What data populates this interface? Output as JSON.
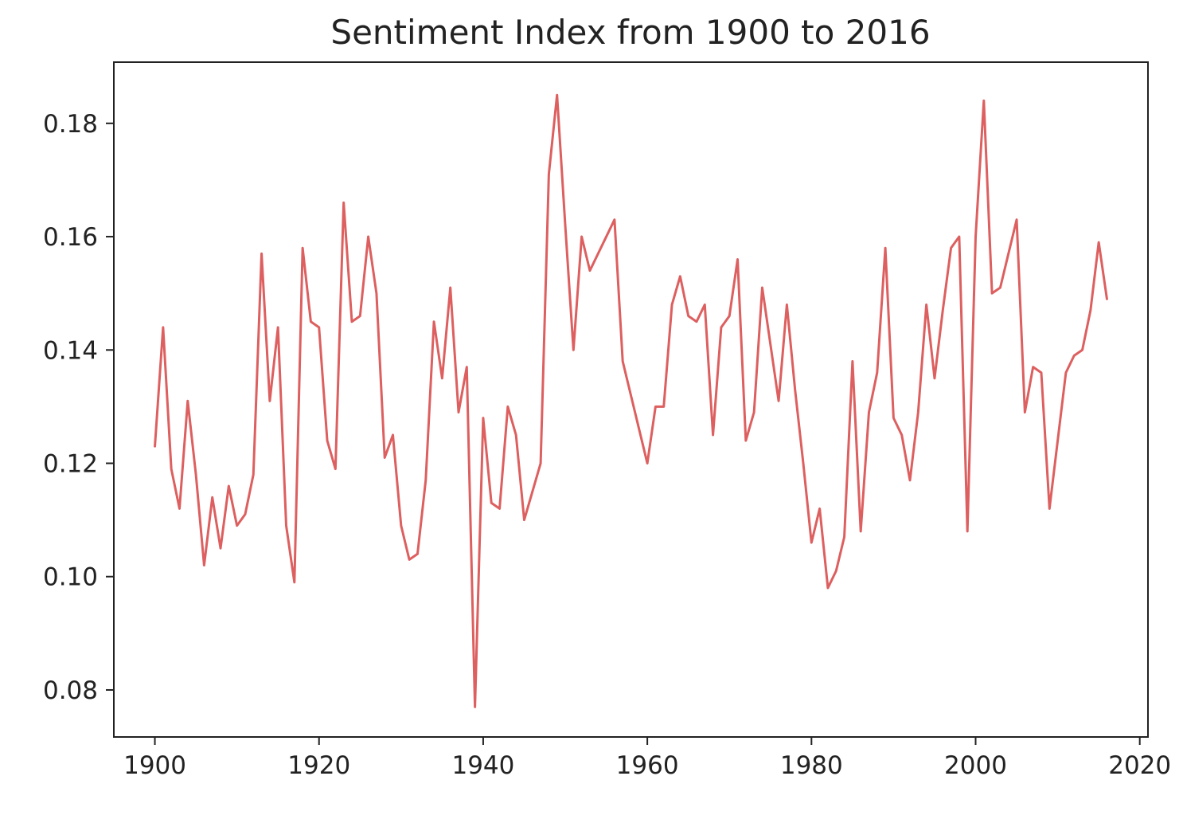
{
  "chart_data": {
    "type": "line",
    "title": "Sentiment Index from 1900 to 2016",
    "xlabel": "",
    "ylabel": "",
    "xlim": [
      1895,
      2021
    ],
    "ylim": [
      0.0717,
      0.1908
    ],
    "x_ticks": [
      1900,
      1920,
      1940,
      1960,
      1980,
      2000,
      2020
    ],
    "y_ticks": [
      0.08,
      0.1,
      0.12,
      0.14,
      0.16,
      0.18
    ],
    "x_tick_labels": [
      "1900",
      "1920",
      "1940",
      "1960",
      "1980",
      "2000",
      "2020"
    ],
    "y_tick_labels": [
      "0.08",
      "0.10",
      "0.12",
      "0.14",
      "0.16",
      "0.18"
    ],
    "grid": false,
    "legend": null,
    "line_color": "#dd5f5f",
    "series": [
      {
        "x": [
          1900,
          1901,
          1902,
          1903,
          1904,
          1905,
          1906,
          1907,
          1908,
          1909,
          1910,
          1911,
          1912,
          1913,
          1914,
          1915,
          1916,
          1917,
          1918,
          1919,
          1920,
          1921,
          1922,
          1923,
          1924,
          1925,
          1926,
          1927,
          1928,
          1929,
          1930,
          1931,
          1932,
          1933,
          1934,
          1935,
          1936,
          1937,
          1938,
          1939,
          1940,
          1941,
          1942,
          1943,
          1944,
          1945,
          1946,
          1947,
          1948,
          1949,
          1950,
          1951,
          1952,
          1953,
          1954,
          1955,
          1956,
          1957,
          1958,
          1959,
          1960,
          1961,
          1962,
          1963,
          1964,
          1965,
          1966,
          1967,
          1968,
          1969,
          1970,
          1971,
          1972,
          1973,
          1974,
          1975,
          1976,
          1977,
          1978,
          1979,
          1980,
          1981,
          1982,
          1983,
          1984,
          1985,
          1986,
          1987,
          1988,
          1989,
          1990,
          1991,
          1992,
          1993,
          1994,
          1995,
          1996,
          1997,
          1998,
          1999,
          2000,
          2001,
          2002,
          2003,
          2004,
          2005,
          2006,
          2007,
          2008,
          2009,
          2010,
          2011,
          2012,
          2013,
          2014,
          2015,
          2016
        ],
        "values": [
          0.123,
          0.144,
          0.119,
          0.112,
          0.131,
          0.118,
          0.102,
          0.114,
          0.105,
          0.116,
          0.109,
          0.111,
          0.118,
          0.157,
          0.131,
          0.144,
          0.109,
          0.099,
          0.158,
          0.145,
          0.144,
          0.124,
          0.119,
          0.166,
          0.145,
          0.146,
          0.16,
          0.15,
          0.121,
          0.125,
          0.109,
          0.103,
          0.104,
          0.117,
          0.145,
          0.135,
          0.151,
          0.129,
          0.137,
          0.077,
          0.128,
          0.113,
          0.112,
          0.13,
          0.125,
          0.11,
          0.115,
          0.12,
          0.171,
          0.185,
          0.162,
          0.14,
          0.16,
          0.154,
          0.157,
          0.16,
          0.163,
          0.138,
          0.132,
          0.126,
          0.12,
          0.13,
          0.13,
          0.148,
          0.153,
          0.146,
          0.145,
          0.148,
          0.125,
          0.144,
          0.146,
          0.156,
          0.124,
          0.129,
          0.151,
          0.141,
          0.131,
          0.148,
          0.133,
          0.12,
          0.106,
          0.112,
          0.098,
          0.101,
          0.107,
          0.138,
          0.108,
          0.129,
          0.136,
          0.158,
          0.128,
          0.125,
          0.117,
          0.129,
          0.148,
          0.135,
          0.147,
          0.158,
          0.16,
          0.108,
          0.16,
          0.184,
          0.15,
          0.151,
          0.157,
          0.163,
          0.129,
          0.137,
          0.136,
          0.112,
          0.124,
          0.136,
          0.139,
          0.14,
          0.147,
          0.159,
          0.149
        ]
      }
    ]
  }
}
